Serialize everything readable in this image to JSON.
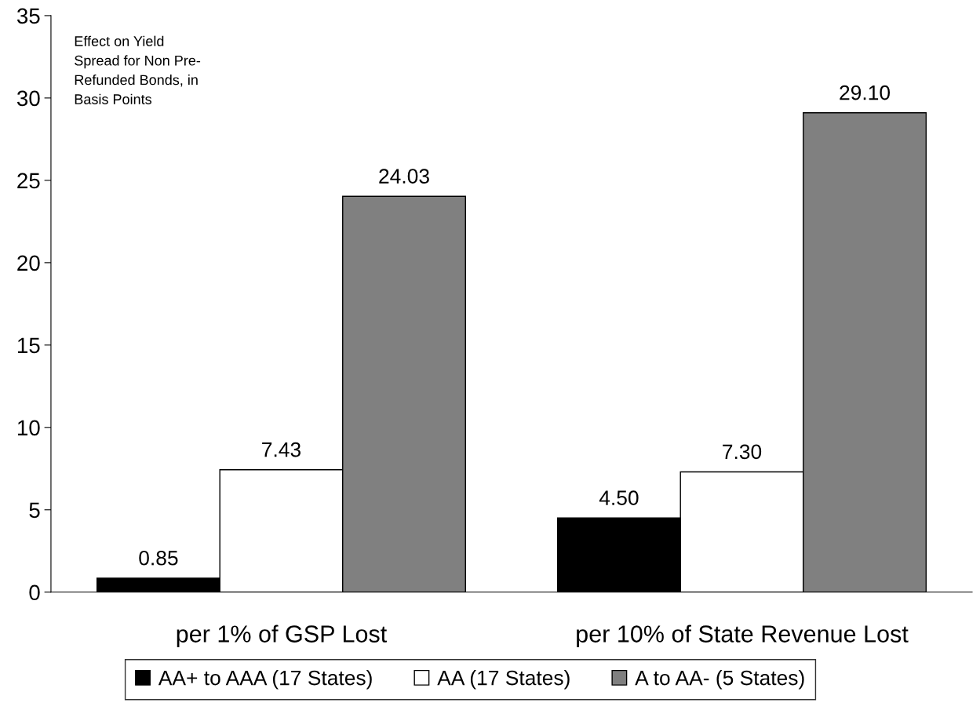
{
  "chart_data": {
    "type": "bar",
    "categories": [
      "per 1% of GSP Lost",
      "per 10% of State Revenue Lost"
    ],
    "series": [
      {
        "name": "AA+ to AAA (17 States)",
        "color": "#000000",
        "values": [
          0.85,
          4.5
        ],
        "value_labels": [
          "0.85",
          "4.50"
        ]
      },
      {
        "name": "AA (17 States)",
        "color": "#ffffff",
        "values": [
          7.43,
          7.3
        ],
        "value_labels": [
          "7.43",
          "7.30"
        ]
      },
      {
        "name": "A to AA- (5 States)",
        "color": "#808080",
        "values": [
          24.03,
          29.1
        ],
        "value_labels": [
          "24.03",
          "29.10"
        ]
      }
    ],
    "ylim": [
      0,
      35
    ],
    "yticks": [
      0,
      5,
      10,
      15,
      20,
      25,
      30,
      35
    ],
    "annotations": [
      "Effect on Yield\nSpread for Non Pre-\nRefunded Bonds, in\nBasis Points"
    ],
    "grid": false,
    "legend": "bottom"
  }
}
